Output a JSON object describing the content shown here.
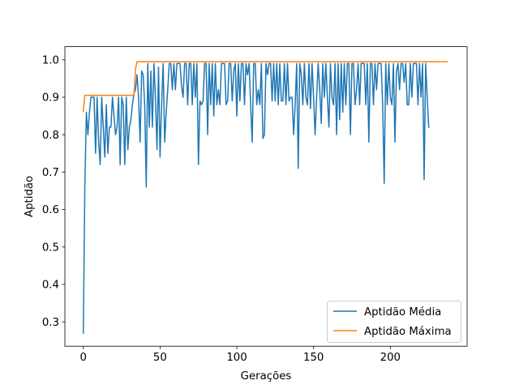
{
  "chart_data": {
    "type": "line",
    "title": "",
    "xlabel": "Gerações",
    "ylabel": "Aptidão",
    "xlim": [
      -12,
      250
    ],
    "ylim": [
      0.235,
      1.035
    ],
    "xticks": [
      0,
      50,
      100,
      150,
      200
    ],
    "yticks": [
      0.3,
      0.4,
      0.5,
      0.6,
      0.7,
      0.8,
      0.9,
      1.0
    ],
    "ytick_labels": [
      "0.3",
      "0.4",
      "0.5",
      "0.6",
      "0.7",
      "0.8",
      "0.9",
      "1.0"
    ],
    "grid": false,
    "legend_position": "lower-right",
    "series": [
      {
        "name": "Aptidão Média",
        "color": "#1f77b4",
        "x_start": 0,
        "values": [
          0.27,
          0.66,
          0.86,
          0.8,
          0.86,
          0.9,
          0.9,
          0.9,
          0.75,
          0.9,
          0.78,
          0.72,
          0.9,
          0.82,
          0.74,
          0.88,
          0.75,
          0.82,
          0.82,
          0.9,
          0.85,
          0.8,
          0.82,
          0.9,
          0.72,
          0.9,
          0.88,
          0.72,
          0.9,
          0.76,
          0.82,
          0.84,
          0.88,
          0.91,
          0.92,
          0.96,
          0.9,
          0.78,
          0.97,
          0.96,
          0.88,
          0.66,
          0.99,
          0.82,
          0.97,
          0.82,
          0.99,
          0.9,
          0.76,
          0.98,
          0.74,
          0.88,
          0.99,
          0.78,
          0.86,
          0.92,
          0.99,
          0.99,
          0.92,
          0.99,
          0.92,
          0.99,
          0.99,
          0.99,
          0.93,
          0.9,
          0.99,
          0.99,
          0.88,
          0.99,
          0.99,
          0.88,
          0.99,
          0.9,
          0.99,
          0.72,
          0.89,
          0.88,
          0.89,
          0.99,
          0.99,
          0.8,
          0.99,
          0.88,
          0.99,
          0.85,
          0.99,
          0.88,
          0.92,
          0.88,
          0.99,
          0.99,
          0.99,
          0.88,
          0.89,
          0.99,
          0.99,
          0.89,
          0.97,
          0.99,
          0.85,
          0.99,
          0.89,
          0.99,
          0.99,
          0.88,
          0.99,
          0.96,
          0.99,
          0.88,
          0.78,
          0.99,
          0.99,
          0.88,
          0.92,
          0.88,
          0.99,
          0.79,
          0.8,
          0.99,
          0.96,
          0.99,
          0.99,
          0.89,
          0.99,
          0.89,
          0.99,
          0.88,
          0.99,
          0.89,
          0.89,
          0.99,
          0.88,
          0.99,
          0.89,
          0.9,
          0.9,
          0.8,
          0.88,
          0.99,
          0.71,
          0.99,
          0.96,
          0.88,
          0.99,
          0.9,
          0.88,
          0.99,
          0.87,
          0.99,
          0.9,
          0.8,
          0.9,
          0.99,
          0.92,
          0.83,
          0.99,
          0.9,
          0.99,
          0.9,
          0.82,
          0.99,
          0.9,
          0.88,
          0.99,
          0.8,
          0.99,
          0.84,
          0.99,
          0.86,
          0.99,
          0.88,
          0.99,
          0.99,
          0.8,
          0.99,
          0.99,
          0.88,
          0.92,
          0.99,
          0.88,
          0.99,
          0.99,
          0.99,
          0.88,
          0.99,
          0.78,
          0.99,
          0.99,
          0.88,
          0.99,
          0.92,
          0.99,
          0.99,
          0.99,
          0.88,
          0.67,
          0.99,
          0.88,
          0.99,
          0.9,
          0.88,
          0.99,
          0.78,
          0.97,
          0.99,
          0.92,
          0.99,
          0.99,
          0.94,
          0.99,
          0.88,
          0.88,
          0.99,
          0.9,
          0.99,
          0.99,
          0.99,
          0.88,
          0.99,
          0.9,
          0.99,
          0.68,
          0.99,
          0.9,
          0.82
        ]
      },
      {
        "name": "Aptidão Máxima",
        "color": "#ff7f0e",
        "x": [
          0,
          1,
          33,
          34,
          35,
          237
        ],
        "y": [
          0.862,
          0.905,
          0.905,
          0.975,
          0.995,
          0.995
        ]
      }
    ]
  }
}
